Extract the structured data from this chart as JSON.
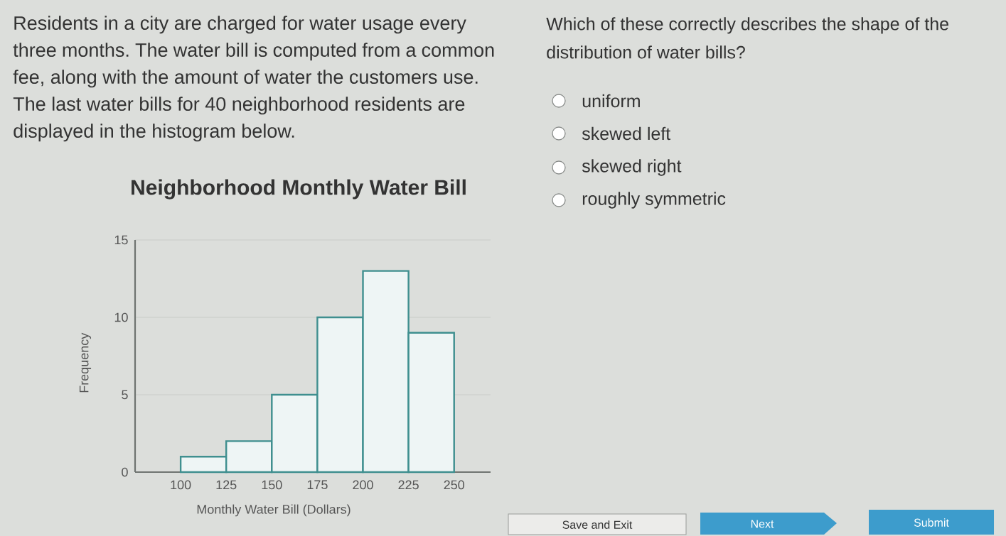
{
  "chart_data": {
    "type": "histogram",
    "title": "Neighborhood Monthly Water Bill",
    "xlabel": "Monthly Water Bill (Dollars)",
    "ylabel": "Frequency",
    "bins": [
      100,
      125,
      150,
      175,
      200,
      225,
      250
    ],
    "values": [
      1,
      2,
      5,
      10,
      13,
      9
    ],
    "color": "#3f8f8f",
    "xlim": [
      75,
      270
    ],
    "ylim": [
      0,
      15
    ],
    "xticks": [
      100,
      125,
      150,
      175,
      200,
      225,
      250
    ],
    "yticks": [
      0,
      5,
      10,
      15
    ],
    "grid": "y",
    "annotations": [
      "Residents in a city are charged for water usage every three months. The water bill is computed from a common fee, along with the amount of water the customers use. The last water bills for 40 neighborhood residents are displayed in the histogram below.",
      "Which of these correctly describes the shape of the distribution of water bills?",
      "uniform",
      "skewed left",
      "skewed right",
      "roughly symmetric",
      "Save and Exit",
      "Next",
      "Submit"
    ]
  }
}
